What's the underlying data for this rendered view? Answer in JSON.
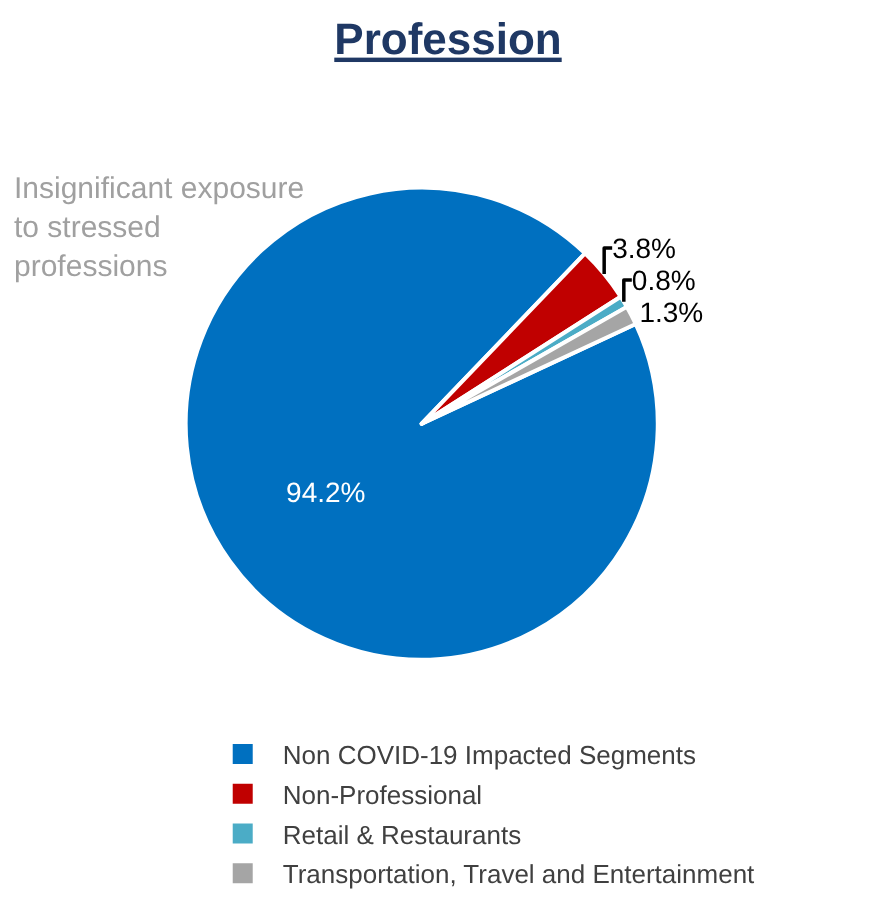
{
  "chart_data": {
    "type": "pie",
    "title": "Profession",
    "annotations": [
      "Insignificant exposure\nto stressed\nprofessions"
    ],
    "categories": [
      "Non COVID-19 Impacted Segments",
      "Non-Professional",
      "Retail & Restaurants",
      "Transportation, Travel and Entertainment"
    ],
    "values": [
      94.2,
      3.8,
      0.8,
      1.3
    ],
    "colors": [
      "#0070c0",
      "#c00000",
      "#4bacc6",
      "#a5a5a5"
    ],
    "value_labels": [
      "94.2%",
      "3.8%",
      "0.8%",
      "1.3%"
    ],
    "legend": "bottom"
  }
}
